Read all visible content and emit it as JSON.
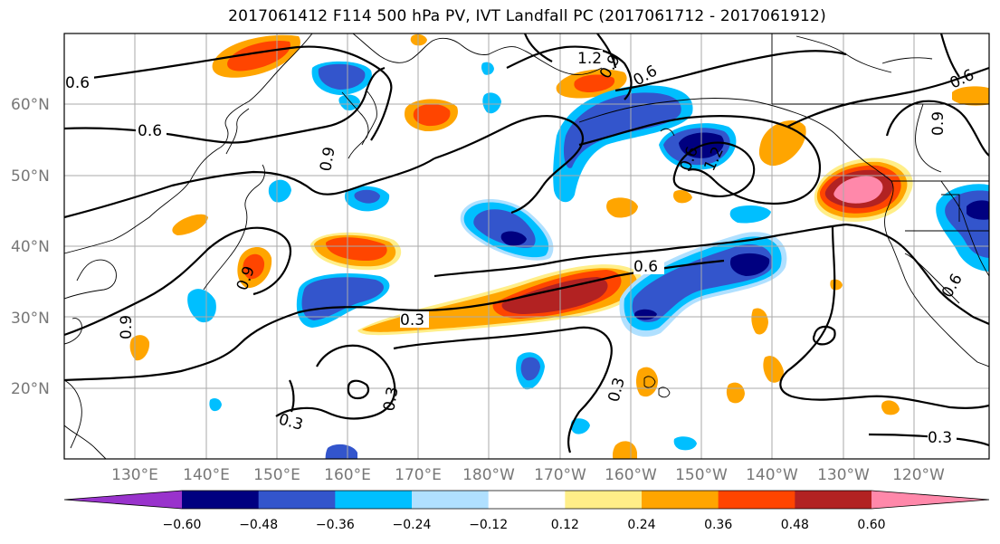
{
  "title": "2017061412 F114 500 hPa PV, IVT Landfall PC (2017061712 - 2017061912)",
  "chart_data": {
    "type": "heatmap",
    "map_projection": "plate-carree",
    "lon_range": [
      120,
      251
    ],
    "lat_range": [
      10,
      70
    ],
    "grid": true,
    "lat_ticks": [
      "20°N",
      "30°N",
      "40°N",
      "50°N",
      "60°N"
    ],
    "lon_ticks": [
      "130°E",
      "140°E",
      "150°E",
      "160°E",
      "170°E",
      "180°W",
      "170°W",
      "160°W",
      "150°W",
      "140°W",
      "130°W",
      "120°W"
    ],
    "colorbar": {
      "levels": [
        "−0.60",
        "−0.48",
        "−0.36",
        "−0.24",
        "−0.12",
        "0.12",
        "0.24",
        "0.36",
        "0.48",
        "0.60"
      ],
      "colors": [
        "#9933cc",
        "#000080",
        "#3355cc",
        "#00bfff",
        "#b0e0ff",
        "#ffffff",
        "#ffee88",
        "#ffa500",
        "#ff4500",
        "#b22222",
        "#ff88aa"
      ],
      "extend": "both"
    },
    "contour_labels": [
      "0.6",
      "0.6",
      "0.9",
      "1.2",
      "0.9",
      "0.6",
      "0.6",
      "0.9",
      "0.6",
      "1.2",
      "0.9",
      "0.6",
      "0.3",
      "0.3",
      "0.3",
      "0.3",
      "0.9",
      "0.6",
      "0.6",
      "0.3",
      "0.3",
      "0.6"
    ],
    "colors": {
      "coast": "#000000",
      "contour": "#000000",
      "grid": "#aaaaaa"
    }
  }
}
